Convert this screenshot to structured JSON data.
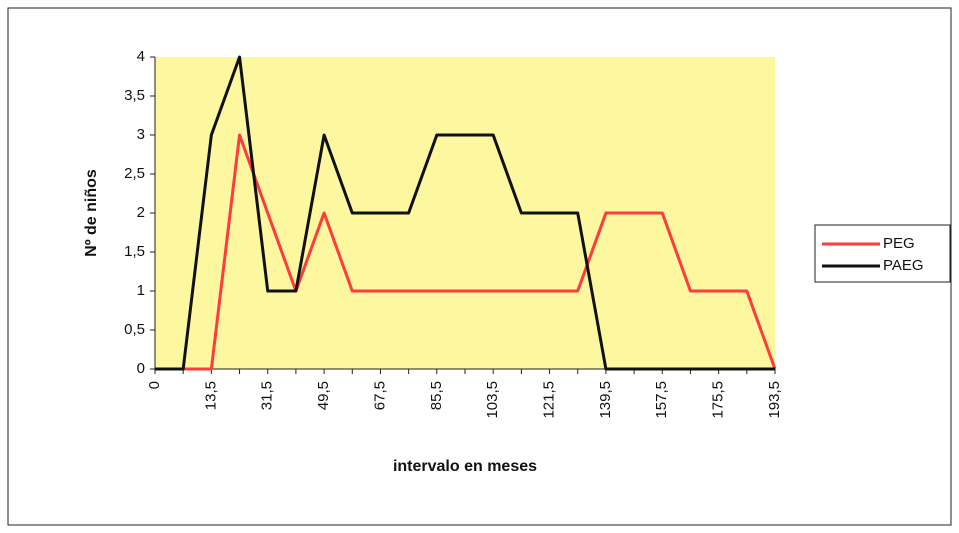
{
  "chart_data": {
    "type": "line",
    "xlabel": "intervalo en meses",
    "ylabel": "Nº de niños",
    "categories": [
      "0",
      null,
      "13,5",
      null,
      "31,5",
      null,
      "49,5",
      null,
      "67,5",
      null,
      "85,5",
      null,
      "103,5",
      null,
      "121,5",
      null,
      "139,5",
      null,
      "157,5",
      null,
      "175,5",
      null,
      "193,5"
    ],
    "series": [
      {
        "name": "PEG",
        "color": "#ff3b3b",
        "values": [
          0,
          0,
          0,
          3,
          2,
          1,
          2,
          1,
          1,
          1,
          1,
          1,
          1,
          1,
          1,
          1,
          2,
          2,
          2,
          1,
          1,
          1,
          0
        ]
      },
      {
        "name": "PAEG",
        "color": "#111111",
        "values": [
          0,
          0,
          3,
          4,
          1,
          1,
          3,
          2,
          2,
          2,
          3,
          3,
          3,
          2,
          2,
          2,
          0,
          0,
          0,
          0,
          0,
          0,
          0
        ]
      }
    ],
    "ylim": [
      0,
      4
    ],
    "yticks": [
      0,
      {
        "value": 0.5,
        "label": "0,5"
      },
      1,
      {
        "value": 1.5,
        "label": "1,5"
      },
      2,
      {
        "value": 2.5,
        "label": "2,5"
      },
      3,
      {
        "value": 3.5,
        "label": "3,5"
      },
      4
    ],
    "legend": "right",
    "plot_color": "#fdf7a0"
  }
}
